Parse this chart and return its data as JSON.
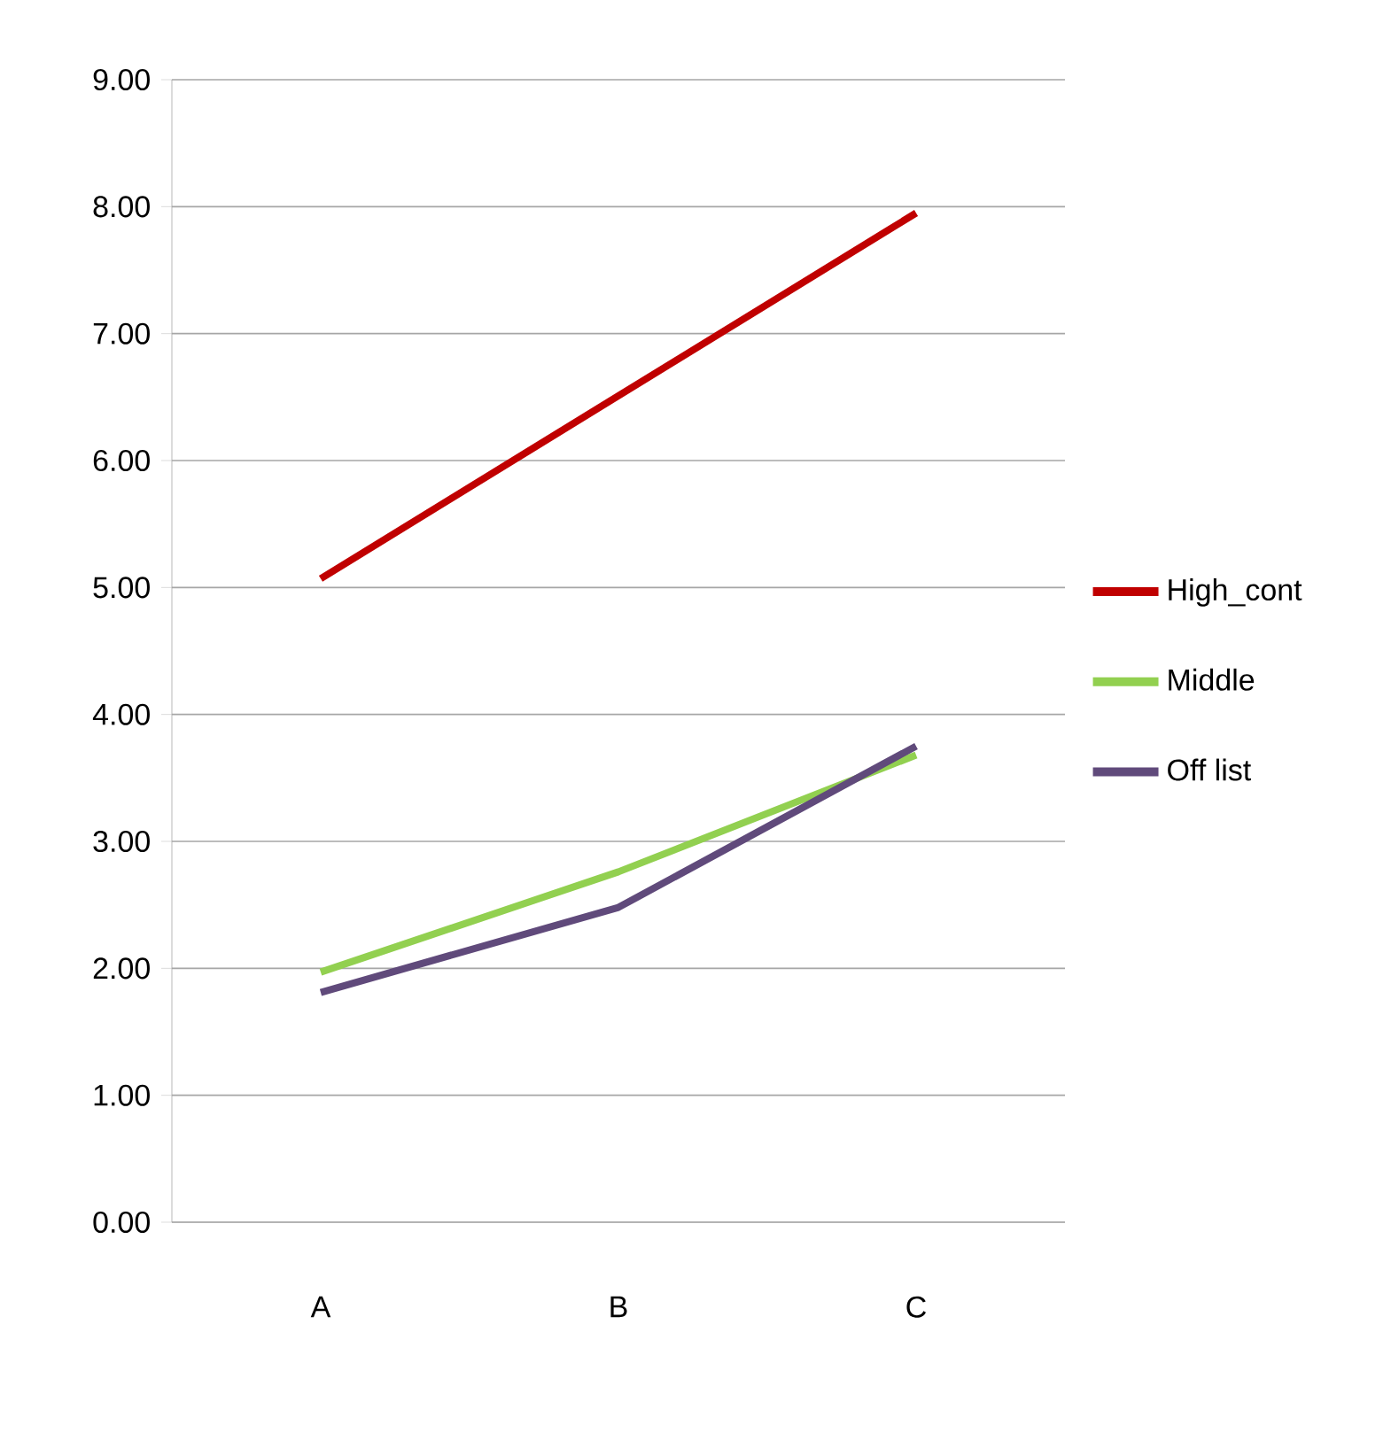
{
  "chart_data": {
    "type": "line",
    "categories": [
      "A",
      "B",
      "C"
    ],
    "series": [
      {
        "name": "High_cont",
        "color": "#c00000",
        "values": [
          5.07,
          6.51,
          7.95
        ]
      },
      {
        "name": "Middle",
        "color": "#92d050",
        "values": [
          1.97,
          2.76,
          3.68
        ]
      },
      {
        "name": "Off list",
        "color": "#604a7b",
        "values": [
          1.81,
          2.48,
          3.75
        ]
      }
    ],
    "ylim": [
      0,
      9
    ],
    "yticks": [
      {
        "value": 0,
        "label": "0.00"
      },
      {
        "value": 1,
        "label": "1.00"
      },
      {
        "value": 2,
        "label": "2.00"
      },
      {
        "value": 3,
        "label": "3.00"
      },
      {
        "value": 4,
        "label": "4.00"
      },
      {
        "value": 5,
        "label": "5.00"
      },
      {
        "value": 6,
        "label": "6.00"
      },
      {
        "value": 7,
        "label": "7.00"
      },
      {
        "value": 8,
        "label": "8.00"
      },
      {
        "value": 9,
        "label": "9.00"
      }
    ],
    "grid": "y",
    "legend": "right",
    "marker": "none",
    "line_style": "solid"
  }
}
